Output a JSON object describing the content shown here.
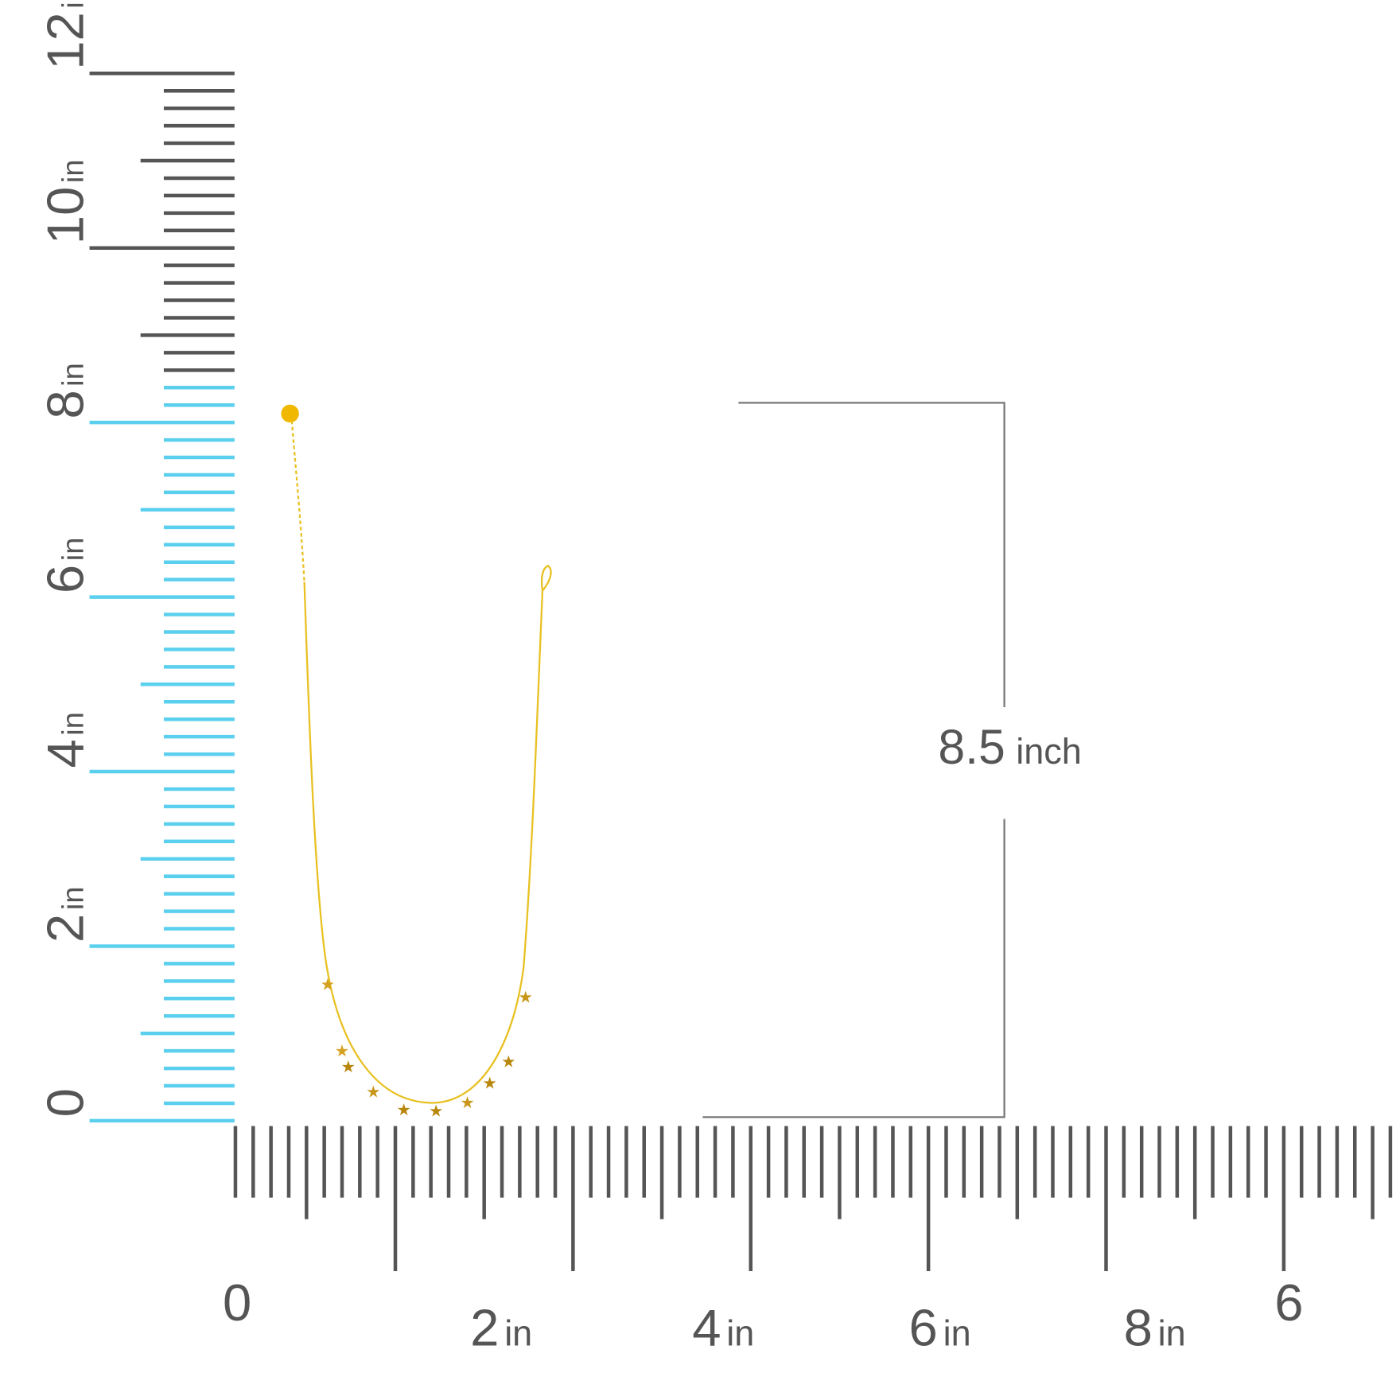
{
  "vertical_ruler": {
    "labels": [
      {
        "number": "0"
      },
      {
        "number": "2",
        "unit": "in"
      },
      {
        "number": "4",
        "unit": "in"
      },
      {
        "number": "6",
        "unit": "in"
      },
      {
        "number": "8",
        "unit": "in"
      },
      {
        "number": "10",
        "unit": "in"
      },
      {
        "number": "12",
        "unit": "in"
      }
    ]
  },
  "horizontal_ruler": {
    "labels": [
      {
        "number": "0"
      },
      {
        "number": "2",
        "unit": "in"
      },
      {
        "number": "4",
        "unit": "in"
      },
      {
        "number": "6",
        "unit": "in"
      },
      {
        "number": "8",
        "unit": "in"
      },
      {
        "number": "6"
      }
    ]
  },
  "dimension": {
    "value": "8.5",
    "unit": "inch"
  }
}
